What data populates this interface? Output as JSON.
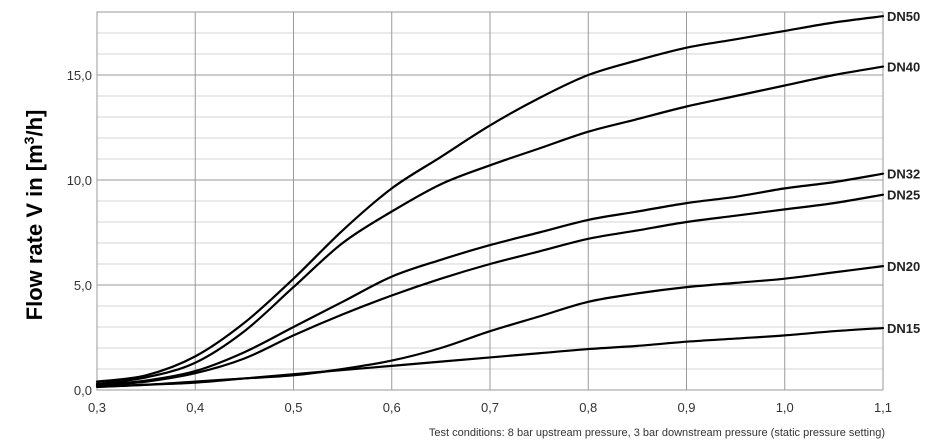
{
  "chart_data": {
    "type": "line",
    "ylabel_main": "Flow rate V in [m",
    "ylabel_sup": "3",
    "ylabel_end": "/h]",
    "xlabel": "",
    "note": "Test conditions: 8 bar upstream pressure, 3 bar downstream pressure (static pressure setting)",
    "xlim": [
      0.3,
      1.1
    ],
    "ylim": [
      0,
      18
    ],
    "grid": true,
    "x_ticks": [
      {
        "value": 0.3,
        "label": "0,3"
      },
      {
        "value": 0.4,
        "label": "0,4"
      },
      {
        "value": 0.5,
        "label": "0,5"
      },
      {
        "value": 0.6,
        "label": "0,6"
      },
      {
        "value": 0.7,
        "label": "0,7"
      },
      {
        "value": 0.8,
        "label": "0,8"
      },
      {
        "value": 0.9,
        "label": "0,9"
      },
      {
        "value": 1.0,
        "label": "1,0"
      },
      {
        "value": 1.1,
        "label": "1,1"
      }
    ],
    "y_ticks": [
      {
        "value": 0,
        "label": "0,0"
      },
      {
        "value": 5,
        "label": "5,0"
      },
      {
        "value": 10,
        "label": "10,0"
      },
      {
        "value": 15,
        "label": "15,0"
      }
    ],
    "series": [
      {
        "name": "DN50",
        "x": [
          0.3,
          0.35,
          0.4,
          0.45,
          0.5,
          0.55,
          0.6,
          0.65,
          0.7,
          0.75,
          0.8,
          0.85,
          0.9,
          0.95,
          1.0,
          1.05,
          1.1
        ],
        "y": [
          0.4,
          0.7,
          1.6,
          3.2,
          5.3,
          7.6,
          9.6,
          11.1,
          12.6,
          13.9,
          15.0,
          15.7,
          16.3,
          16.7,
          17.1,
          17.5,
          17.8
        ]
      },
      {
        "name": "DN40",
        "x": [
          0.3,
          0.35,
          0.4,
          0.45,
          0.5,
          0.55,
          0.6,
          0.65,
          0.7,
          0.75,
          0.8,
          0.85,
          0.9,
          0.95,
          1.0,
          1.05,
          1.1
        ],
        "y": [
          0.3,
          0.6,
          1.3,
          2.8,
          4.9,
          7.0,
          8.5,
          9.8,
          10.7,
          11.5,
          12.3,
          12.9,
          13.5,
          14.0,
          14.5,
          15.0,
          15.4
        ]
      },
      {
        "name": "DN32",
        "x": [
          0.3,
          0.35,
          0.4,
          0.45,
          0.5,
          0.55,
          0.6,
          0.65,
          0.7,
          0.75,
          0.8,
          0.85,
          0.9,
          0.95,
          1.0,
          1.05,
          1.1
        ],
        "y": [
          0.25,
          0.45,
          0.9,
          1.8,
          3.0,
          4.2,
          5.4,
          6.2,
          6.9,
          7.5,
          8.1,
          8.5,
          8.9,
          9.2,
          9.6,
          9.9,
          10.3
        ]
      },
      {
        "name": "DN25",
        "x": [
          0.3,
          0.35,
          0.4,
          0.45,
          0.5,
          0.55,
          0.6,
          0.65,
          0.7,
          0.75,
          0.8,
          0.85,
          0.9,
          0.95,
          1.0,
          1.05,
          1.1
        ],
        "y": [
          0.2,
          0.4,
          0.8,
          1.5,
          2.6,
          3.6,
          4.5,
          5.3,
          6.0,
          6.6,
          7.2,
          7.6,
          8.0,
          8.3,
          8.6,
          8.9,
          9.3
        ]
      },
      {
        "name": "DN20",
        "x": [
          0.3,
          0.35,
          0.4,
          0.45,
          0.5,
          0.55,
          0.6,
          0.65,
          0.7,
          0.75,
          0.8,
          0.85,
          0.9,
          0.95,
          1.0,
          1.05,
          1.1
        ],
        "y": [
          0.15,
          0.25,
          0.4,
          0.55,
          0.7,
          1.0,
          1.4,
          2.0,
          2.8,
          3.5,
          4.2,
          4.6,
          4.9,
          5.1,
          5.3,
          5.6,
          5.9
        ]
      },
      {
        "name": "DN15",
        "x": [
          0.3,
          0.35,
          0.4,
          0.45,
          0.5,
          0.55,
          0.6,
          0.65,
          0.7,
          0.75,
          0.8,
          0.85,
          0.9,
          0.95,
          1.0,
          1.05,
          1.1
        ],
        "y": [
          0.15,
          0.25,
          0.35,
          0.55,
          0.75,
          0.95,
          1.15,
          1.35,
          1.55,
          1.75,
          1.95,
          2.1,
          2.3,
          2.45,
          2.6,
          2.8,
          2.95
        ]
      }
    ]
  }
}
